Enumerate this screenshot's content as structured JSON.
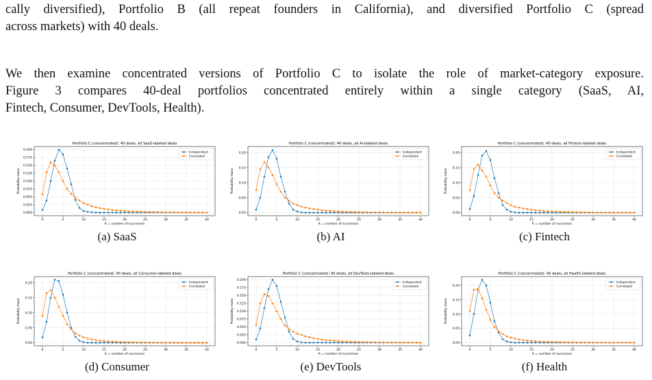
{
  "text": {
    "paragraph_1": [
      "cally diversified), Portfolio B (all repeat founders in California), and diversified Portfolio C (spread",
      "across markets) with 40 deals."
    ],
    "paragraph_2": [
      "We then examine concentrated versions of Portfolio C to isolate the role of market-category exposure.",
      "Figure 3 compares 40-deal portfolios concentrated entirely within a single category (SaaS, AI,",
      "Fintech, Consumer, DevTools, Health)."
    ]
  },
  "chart_data": [
    {
      "type": "line",
      "title": "Portfolio C (concentrated): 40 deals, all SaaS-labeled deals",
      "caption": "(a) SaaS",
      "xlabel": "K = number of successes",
      "ylabel": "Probability mass",
      "x": [
        0,
        1,
        2,
        3,
        4,
        5,
        6,
        7,
        8,
        9,
        10,
        11,
        12,
        13,
        14,
        15,
        16,
        17,
        18,
        19,
        20,
        21,
        22,
        23,
        24,
        25,
        26,
        27,
        28,
        29,
        30,
        31,
        32,
        33,
        34,
        35,
        36,
        37,
        38,
        39,
        40
      ],
      "series": [
        {
          "name": "Independent",
          "color": "#1f77b4",
          "values": [
            0.008,
            0.038,
            0.1,
            0.165,
            0.2,
            0.185,
            0.14,
            0.09,
            0.04,
            0.015,
            0.005,
            0.002,
            0.001,
            0,
            0,
            0,
            0,
            0,
            0,
            0,
            0,
            0,
            0,
            0,
            0,
            0,
            0,
            0,
            0,
            0,
            0,
            0,
            0,
            0,
            0,
            0,
            0,
            0,
            0,
            0,
            0
          ]
        },
        {
          "name": "Correlated",
          "color": "#ff7f0e",
          "values": [
            0.058,
            0.128,
            0.16,
            0.15,
            0.128,
            0.1,
            0.075,
            0.06,
            0.047,
            0.038,
            0.03,
            0.025,
            0.02,
            0.017,
            0.014,
            0.012,
            0.01,
            0.008,
            0.007,
            0.006,
            0.005,
            0.004,
            0.0035,
            0.003,
            0.0025,
            0.002,
            0.0017,
            0.0014,
            0.0012,
            0.001,
            0.0008,
            0.0007,
            0.0006,
            0.0005,
            0.0004,
            0.0003,
            0.0003,
            0.0002,
            0.0002,
            0.0001,
            0.0001
          ]
        }
      ],
      "xlim": [
        -2,
        42
      ],
      "xticks": [
        0,
        5,
        10,
        15,
        20,
        25,
        30,
        35,
        40
      ],
      "ylim": [
        -0.01,
        0.21
      ],
      "yticks": [
        {
          "value": 0,
          "label": "0.000"
        },
        {
          "value": 0.025,
          "label": "0.025"
        },
        {
          "value": 0.05,
          "label": "0.050"
        },
        {
          "value": 0.075,
          "label": "0.075"
        },
        {
          "value": 0.1,
          "label": "0.100"
        },
        {
          "value": 0.125,
          "label": "0.125"
        },
        {
          "value": 0.15,
          "label": "0.150"
        },
        {
          "value": 0.175,
          "label": "0.175"
        },
        {
          "value": 0.2,
          "label": "0.200"
        }
      ],
      "grid": true,
      "legend": "upper right"
    },
    {
      "type": "line",
      "title": "Portfolio C (concentrated): 40 deals, all AI-labeled deals",
      "caption": "(b) AI",
      "xlabel": "K = number of successes",
      "ylabel": "Probability mass",
      "x": [
        0,
        1,
        2,
        3,
        4,
        5,
        6,
        7,
        8,
        9,
        10,
        11,
        12,
        13,
        14,
        15,
        16,
        17,
        18,
        19,
        20,
        21,
        22,
        23,
        24,
        25,
        26,
        27,
        28,
        29,
        30,
        31,
        32,
        33,
        34,
        35,
        36,
        37,
        38,
        39,
        40
      ],
      "series": [
        {
          "name": "Independent",
          "color": "#1f77b4",
          "values": [
            0.01,
            0.05,
            0.12,
            0.185,
            0.208,
            0.18,
            0.12,
            0.07,
            0.03,
            0.01,
            0.004,
            0.001,
            0,
            0,
            0,
            0,
            0,
            0,
            0,
            0,
            0,
            0,
            0,
            0,
            0,
            0,
            0,
            0,
            0,
            0,
            0,
            0,
            0,
            0,
            0,
            0,
            0,
            0,
            0,
            0,
            0
          ]
        },
        {
          "name": "Correlated",
          "color": "#ff7f0e",
          "values": [
            0.075,
            0.145,
            0.168,
            0.15,
            0.125,
            0.095,
            0.07,
            0.05,
            0.04,
            0.03,
            0.025,
            0.02,
            0.017,
            0.014,
            0.012,
            0.01,
            0.008,
            0.007,
            0.006,
            0.005,
            0.004,
            0.0035,
            0.003,
            0.0025,
            0.002,
            0.0017,
            0.0014,
            0.0012,
            0.001,
            0.0008,
            0.0007,
            0.0006,
            0.0005,
            0.0004,
            0.0003,
            0.0003,
            0.0002,
            0.0002,
            0.0001,
            0.0001,
            0.0001
          ]
        }
      ],
      "xlim": [
        -2,
        42
      ],
      "xticks": [
        0,
        5,
        10,
        15,
        20,
        25,
        30,
        35,
        40
      ],
      "ylim": [
        -0.01,
        0.22
      ],
      "yticks": [
        {
          "value": 0,
          "label": "0.00"
        },
        {
          "value": 0.05,
          "label": "0.05"
        },
        {
          "value": 0.1,
          "label": "0.10"
        },
        {
          "value": 0.15,
          "label": "0.15"
        },
        {
          "value": 0.2,
          "label": "0.20"
        }
      ],
      "grid": true,
      "legend": "upper right"
    },
    {
      "type": "line",
      "title": "Portfolio C (concentrated): 40 deals, all Fintech-labeled deals",
      "caption": "(c) Fintech",
      "xlabel": "K = number of successes",
      "ylabel": "Probability mass",
      "x": [
        0,
        1,
        2,
        3,
        4,
        5,
        6,
        7,
        8,
        9,
        10,
        11,
        12,
        13,
        14,
        15,
        16,
        17,
        18,
        19,
        20,
        21,
        22,
        23,
        24,
        25,
        26,
        27,
        28,
        29,
        30,
        31,
        32,
        33,
        34,
        35,
        36,
        37,
        38,
        39,
        40
      ],
      "series": [
        {
          "name": "Independent",
          "color": "#1f77b4",
          "values": [
            0.012,
            0.055,
            0.125,
            0.19,
            0.205,
            0.175,
            0.115,
            0.065,
            0.025,
            0.01,
            0.003,
            0.001,
            0,
            0,
            0,
            0,
            0,
            0,
            0,
            0,
            0,
            0,
            0,
            0,
            0,
            0,
            0,
            0,
            0,
            0,
            0,
            0,
            0,
            0,
            0,
            0,
            0,
            0,
            0,
            0,
            0
          ]
        },
        {
          "name": "Correlated",
          "color": "#ff7f0e",
          "values": [
            0.075,
            0.145,
            0.16,
            0.14,
            0.12,
            0.09,
            0.065,
            0.05,
            0.04,
            0.032,
            0.025,
            0.02,
            0.017,
            0.014,
            0.012,
            0.01,
            0.008,
            0.007,
            0.006,
            0.005,
            0.004,
            0.0035,
            0.003,
            0.0025,
            0.002,
            0.0017,
            0.0014,
            0.0012,
            0.001,
            0.0008,
            0.0007,
            0.0006,
            0.0005,
            0.0004,
            0.0003,
            0.0003,
            0.0002,
            0.0002,
            0.0001,
            0.0001,
            0.0001
          ]
        }
      ],
      "xlim": [
        -2,
        42
      ],
      "xticks": [
        0,
        5,
        10,
        15,
        20,
        25,
        30,
        35,
        40
      ],
      "ylim": [
        -0.01,
        0.22
      ],
      "yticks": [
        {
          "value": 0,
          "label": "0.00"
        },
        {
          "value": 0.05,
          "label": "0.05"
        },
        {
          "value": 0.1,
          "label": "0.10"
        },
        {
          "value": 0.15,
          "label": "0.15"
        },
        {
          "value": 0.2,
          "label": "0.20"
        }
      ],
      "grid": true,
      "legend": "upper right"
    },
    {
      "type": "line",
      "title": "Portfolio C (concentrated): 40 deals, all Consumer-labeled deals",
      "caption": "(d) Consumer",
      "xlabel": "K = number of successes",
      "ylabel": "Probability mass",
      "x": [
        0,
        1,
        2,
        3,
        4,
        5,
        6,
        7,
        8,
        9,
        10,
        11,
        12,
        13,
        14,
        15,
        16,
        17,
        18,
        19,
        20,
        21,
        22,
        23,
        24,
        25,
        26,
        27,
        28,
        29,
        30,
        31,
        32,
        33,
        34,
        35,
        36,
        37,
        38,
        39,
        40
      ],
      "series": [
        {
          "name": "Independent",
          "color": "#1f77b4",
          "values": [
            0.018,
            0.07,
            0.15,
            0.21,
            0.205,
            0.16,
            0.1,
            0.05,
            0.02,
            0.007,
            0.002,
            0,
            0,
            0,
            0,
            0,
            0,
            0,
            0,
            0,
            0,
            0,
            0,
            0,
            0,
            0,
            0,
            0,
            0,
            0,
            0,
            0,
            0,
            0,
            0,
            0,
            0,
            0,
            0,
            0,
            0
          ]
        },
        {
          "name": "Correlated",
          "color": "#ff7f0e",
          "values": [
            0.09,
            0.165,
            0.175,
            0.15,
            0.12,
            0.09,
            0.062,
            0.045,
            0.032,
            0.024,
            0.018,
            0.014,
            0.011,
            0.009,
            0.007,
            0.006,
            0.005,
            0.004,
            0.0033,
            0.0027,
            0.0022,
            0.0018,
            0.0015,
            0.0012,
            0.001,
            0.0008,
            0.0007,
            0.0006,
            0.0005,
            0.0004,
            0.0003,
            0.0003,
            0.0002,
            0.0002,
            0.0001,
            0.0001,
            0.0001,
            0.0001,
            0,
            0,
            0
          ]
        }
      ],
      "xlim": [
        -2,
        42
      ],
      "xticks": [
        0,
        5,
        10,
        15,
        20,
        25,
        30,
        35,
        40
      ],
      "ylim": [
        -0.01,
        0.22
      ],
      "yticks": [
        {
          "value": 0,
          "label": "0.00"
        },
        {
          "value": 0.05,
          "label": "0.05"
        },
        {
          "value": 0.1,
          "label": "0.10"
        },
        {
          "value": 0.15,
          "label": "0.15"
        },
        {
          "value": 0.2,
          "label": "0.20"
        }
      ],
      "grid": true,
      "legend": "upper right"
    },
    {
      "type": "line",
      "title": "Portfolio C (concentrated): 40 deals, all DevTools-labeled deals",
      "caption": "(e) DevTools",
      "xlabel": "K = number of successes",
      "ylabel": "Probability mass",
      "x": [
        0,
        1,
        2,
        3,
        4,
        5,
        6,
        7,
        8,
        9,
        10,
        11,
        12,
        13,
        14,
        15,
        16,
        17,
        18,
        19,
        20,
        21,
        22,
        23,
        24,
        25,
        26,
        27,
        28,
        29,
        30,
        31,
        32,
        33,
        34,
        35,
        36,
        37,
        38,
        39,
        40
      ],
      "series": [
        {
          "name": "Independent",
          "color": "#1f77b4",
          "values": [
            0.01,
            0.045,
            0.11,
            0.17,
            0.2,
            0.18,
            0.13,
            0.08,
            0.035,
            0.012,
            0.004,
            0.001,
            0,
            0,
            0,
            0,
            0,
            0,
            0,
            0,
            0,
            0,
            0,
            0,
            0,
            0,
            0,
            0,
            0,
            0,
            0,
            0,
            0,
            0,
            0,
            0,
            0,
            0,
            0,
            0,
            0
          ]
        },
        {
          "name": "Correlated",
          "color": "#ff7f0e",
          "values": [
            0.057,
            0.125,
            0.155,
            0.148,
            0.125,
            0.1,
            0.075,
            0.055,
            0.043,
            0.035,
            0.028,
            0.025,
            0.02,
            0.017,
            0.014,
            0.012,
            0.01,
            0.008,
            0.007,
            0.006,
            0.005,
            0.004,
            0.0035,
            0.003,
            0.0025,
            0.002,
            0.0017,
            0.0014,
            0.0012,
            0.001,
            0.0008,
            0.0007,
            0.0006,
            0.0005,
            0.0004,
            0.0003,
            0.0003,
            0.0002,
            0.0002,
            0.0001,
            0.0001
          ]
        }
      ],
      "xlim": [
        -2,
        42
      ],
      "xticks": [
        0,
        5,
        10,
        15,
        20,
        25,
        30,
        35,
        40
      ],
      "ylim": [
        -0.01,
        0.21
      ],
      "yticks": [
        {
          "value": 0,
          "label": "0.000"
        },
        {
          "value": 0.025,
          "label": "0.025"
        },
        {
          "value": 0.05,
          "label": "0.050"
        },
        {
          "value": 0.075,
          "label": "0.075"
        },
        {
          "value": 0.1,
          "label": "0.100"
        },
        {
          "value": 0.125,
          "label": "0.125"
        },
        {
          "value": 0.15,
          "label": "0.150"
        },
        {
          "value": 0.175,
          "label": "0.175"
        },
        {
          "value": 0.2,
          "label": "0.200"
        }
      ],
      "grid": true,
      "legend": "upper right"
    },
    {
      "type": "line",
      "title": "Portfolio C (concentrated): 40 deals, all Health-labeled deals",
      "caption": "(f) Health",
      "xlabel": "K = number of successes",
      "ylabel": "Probability mass",
      "x": [
        0,
        1,
        2,
        3,
        4,
        5,
        6,
        7,
        8,
        9,
        10,
        11,
        12,
        13,
        14,
        15,
        16,
        17,
        18,
        19,
        20,
        21,
        22,
        23,
        24,
        25,
        26,
        27,
        28,
        29,
        30,
        31,
        32,
        33,
        34,
        35,
        36,
        37,
        38,
        39,
        40
      ],
      "series": [
        {
          "name": "Independent",
          "color": "#1f77b4",
          "values": [
            0.025,
            0.1,
            0.185,
            0.22,
            0.2,
            0.14,
            0.075,
            0.035,
            0.012,
            0.004,
            0.001,
            0,
            0,
            0,
            0,
            0,
            0,
            0,
            0,
            0,
            0,
            0,
            0,
            0,
            0,
            0,
            0,
            0,
            0,
            0,
            0,
            0,
            0,
            0,
            0,
            0,
            0,
            0,
            0,
            0,
            0
          ]
        },
        {
          "name": "Correlated",
          "color": "#ff7f0e",
          "values": [
            0.11,
            0.185,
            0.188,
            0.155,
            0.115,
            0.08,
            0.055,
            0.04,
            0.03,
            0.022,
            0.017,
            0.014,
            0.011,
            0.009,
            0.007,
            0.006,
            0.005,
            0.004,
            0.0033,
            0.0027,
            0.0022,
            0.0018,
            0.0015,
            0.0012,
            0.001,
            0.0008,
            0.0007,
            0.0006,
            0.0005,
            0.0004,
            0.0003,
            0.0003,
            0.0002,
            0.0002,
            0.0001,
            0.0001,
            0.0001,
            0.0001,
            0,
            0,
            0
          ]
        }
      ],
      "xlim": [
        -2,
        42
      ],
      "xticks": [
        0,
        5,
        10,
        15,
        20,
        25,
        30,
        35,
        40
      ],
      "ylim": [
        -0.011,
        0.231
      ],
      "yticks": [
        {
          "value": 0,
          "label": "0.00"
        },
        {
          "value": 0.05,
          "label": "0.05"
        },
        {
          "value": 0.1,
          "label": "0.10"
        },
        {
          "value": 0.15,
          "label": "0.15"
        },
        {
          "value": 0.2,
          "label": "0.20"
        }
      ],
      "grid": true,
      "legend": "upper right"
    }
  ]
}
